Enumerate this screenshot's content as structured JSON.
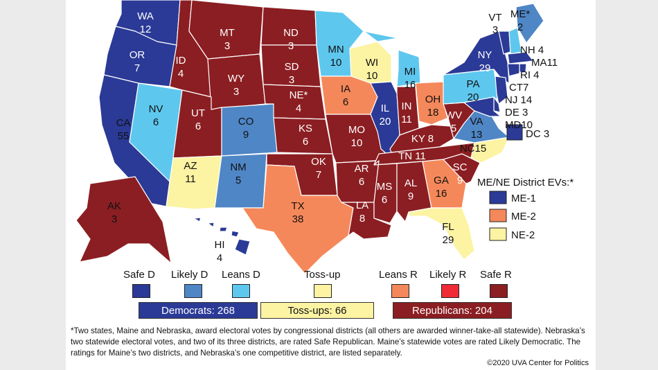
{
  "colors": {
    "safe_d": "#2b3a96",
    "likely_d": "#4f86c6",
    "leans_d": "#5ec7ee",
    "tossup": "#fcf3a3",
    "leans_r": "#f5885a",
    "likely_r": "#ef2b36",
    "safe_r": "#8b1e22"
  },
  "states": [
    {
      "abbr": "WA",
      "ev": "12",
      "rating": "safe_d"
    },
    {
      "abbr": "OR",
      "ev": "7",
      "rating": "safe_d"
    },
    {
      "abbr": "CA",
      "ev": "55",
      "rating": "safe_d"
    },
    {
      "abbr": "NV",
      "ev": "6",
      "rating": "leans_d"
    },
    {
      "abbr": "ID",
      "ev": "4",
      "rating": "safe_r"
    },
    {
      "abbr": "MT",
      "ev": "3",
      "rating": "safe_r"
    },
    {
      "abbr": "WY",
      "ev": "3",
      "rating": "safe_r"
    },
    {
      "abbr": "UT",
      "ev": "6",
      "rating": "safe_r"
    },
    {
      "abbr": "AZ",
      "ev": "11",
      "rating": "tossup"
    },
    {
      "abbr": "CO",
      "ev": "9",
      "rating": "likely_d"
    },
    {
      "abbr": "NM",
      "ev": "5",
      "rating": "likely_d"
    },
    {
      "abbr": "ND",
      "ev": "3",
      "rating": "safe_r"
    },
    {
      "abbr": "SD",
      "ev": "3",
      "rating": "safe_r"
    },
    {
      "abbr": "NE*",
      "ev": "4",
      "rating": "safe_r"
    },
    {
      "abbr": "KS",
      "ev": "6",
      "rating": "safe_r"
    },
    {
      "abbr": "OK",
      "ev": "7",
      "rating": "safe_r"
    },
    {
      "abbr": "TX",
      "ev": "38",
      "rating": "leans_r"
    },
    {
      "abbr": "MN",
      "ev": "10",
      "rating": "leans_d"
    },
    {
      "abbr": "IA",
      "ev": "6",
      "rating": "leans_r"
    },
    {
      "abbr": "MO",
      "ev": "10",
      "rating": "safe_r"
    },
    {
      "abbr": "AR",
      "ev": "6",
      "rating": "safe_r"
    },
    {
      "abbr": "LA",
      "ev": "8",
      "rating": "safe_r"
    },
    {
      "abbr": "WI",
      "ev": "10",
      "rating": "tossup"
    },
    {
      "abbr": "IL",
      "ev": "20",
      "rating": "safe_d"
    },
    {
      "abbr": "MI",
      "ev": "16",
      "rating": "leans_d"
    },
    {
      "abbr": "IN",
      "ev": "11",
      "rating": "safe_r"
    },
    {
      "abbr": "OH",
      "ev": "18",
      "rating": "leans_r"
    },
    {
      "abbr": "KY",
      "ev": "8",
      "rating": "safe_r"
    },
    {
      "abbr": "TN",
      "ev": "11",
      "rating": "safe_r"
    },
    {
      "abbr": "MS",
      "ev": "6",
      "rating": "safe_r"
    },
    {
      "abbr": "AL",
      "ev": "9",
      "rating": "safe_r"
    },
    {
      "abbr": "GA",
      "ev": "16",
      "rating": "leans_r"
    },
    {
      "abbr": "FL",
      "ev": "29",
      "rating": "tossup"
    },
    {
      "abbr": "SC",
      "ev": "9",
      "rating": "safe_r"
    },
    {
      "abbr": "NC",
      "ev": "15",
      "rating": "tossup"
    },
    {
      "abbr": "VA",
      "ev": "13",
      "rating": "likely_d"
    },
    {
      "abbr": "WV",
      "ev": "5",
      "rating": "safe_r"
    },
    {
      "abbr": "PA",
      "ev": "20",
      "rating": "leans_d"
    },
    {
      "abbr": "NY",
      "ev": "29",
      "rating": "safe_d"
    },
    {
      "abbr": "VT",
      "ev": "3",
      "rating": "safe_d"
    },
    {
      "abbr": "NH",
      "ev": "4",
      "rating": "leans_d"
    },
    {
      "abbr": "ME*",
      "ev": "2",
      "rating": "likely_d"
    },
    {
      "abbr": "MA",
      "ev": "11",
      "rating": "safe_d"
    },
    {
      "abbr": "RI",
      "ev": "4",
      "rating": "safe_d"
    },
    {
      "abbr": "CT",
      "ev": "7",
      "rating": "safe_d"
    },
    {
      "abbr": "NJ",
      "ev": "14",
      "rating": "safe_d"
    },
    {
      "abbr": "DE",
      "ev": "3",
      "rating": "safe_d"
    },
    {
      "abbr": "MD",
      "ev": "10",
      "rating": "safe_d"
    },
    {
      "abbr": "DC",
      "ev": "3",
      "rating": "safe_d"
    },
    {
      "abbr": "AK",
      "ev": "3",
      "rating": "safe_r"
    },
    {
      "abbr": "HI",
      "ev": "4",
      "rating": "safe_d"
    }
  ],
  "labels": {
    "WA": "WA",
    "WA_ev": "12",
    "OR": "OR",
    "OR_ev": "7",
    "CA": "CA",
    "CA_ev": "55",
    "NV": "NV",
    "NV_ev": "6",
    "ID": "ID",
    "ID_ev": "4",
    "MT": "MT",
    "MT_ev": "3",
    "WY": "WY",
    "WY_ev": "3",
    "UT": "UT",
    "UT_ev": "6",
    "AZ": "AZ",
    "AZ_ev": "11",
    "CO": "CO",
    "CO_ev": "9",
    "NM": "NM",
    "NM_ev": "5",
    "ND": "ND",
    "ND_ev": "3",
    "SD": "SD",
    "SD_ev": "3",
    "NE": "NE*",
    "NE_ev": "4",
    "KS": "KS",
    "KS_ev": "6",
    "OK": "OK",
    "OK_ev": "7",
    "TX": "TX",
    "TX_ev": "38",
    "MN": "MN",
    "MN_ev": "10",
    "IA": "IA",
    "IA_ev": "6",
    "MO": "MO",
    "MO_ev": "10",
    "AR": "AR",
    "AR_ev": "6",
    "LA": "LA",
    "LA_ev": "8",
    "WI": "WI",
    "WI_ev": "10",
    "IL": "IL",
    "IL_ev": "20",
    "MI": "MI",
    "MI_ev": "16",
    "IN": "IN",
    "IN_ev": "11",
    "OH": "OH",
    "OH_ev": "18",
    "KY": "KY 8",
    "TN": "TN 11",
    "MS": "MS",
    "MS_ev": "6",
    "AL": "AL",
    "AL_ev": "9",
    "GA": "GA",
    "GA_ev": "16",
    "FL": "FL",
    "FL_ev": "29",
    "SC": "SC",
    "SC_ev": "9",
    "NC": "NC15",
    "VA": "VA",
    "VA_ev": "13",
    "WV": "WV",
    "WV_ev": "5",
    "PA": "PA",
    "PA_ev": "20",
    "NY": "NY",
    "NY_ev": "29",
    "VT": "VT",
    "VT_ev": "3",
    "ME": "ME*",
    "ME_ev": "2",
    "AK": "AK",
    "AK_ev": "3",
    "HI": "HI",
    "HI_ev": "4",
    "NH_side": "NH 4",
    "MA_side": "MA11",
    "RI_side": "RI 4",
    "CT_side": "CT7",
    "NJ_side": "NJ 14",
    "DE_side": "DE 3",
    "MD_side": "MD10",
    "DC_side": "DC 3"
  },
  "district_legend": {
    "title": "ME/NE District EVs:*",
    "items": [
      {
        "label": "ME-1",
        "rating": "safe_d"
      },
      {
        "label": "ME-2",
        "rating": "leans_r"
      },
      {
        "label": "NE-2",
        "rating": "tossup"
      }
    ]
  },
  "legend": {
    "categories": [
      {
        "label": "Safe D",
        "rating": "safe_d"
      },
      {
        "label": "Likely D",
        "rating": "likely_d"
      },
      {
        "label": "Leans D",
        "rating": "leans_d"
      },
      {
        "label": "Toss-up",
        "rating": "tossup"
      },
      {
        "label": "Leans R",
        "rating": "leans_r"
      },
      {
        "label": "Likely R",
        "rating": "likely_r"
      },
      {
        "label": "Safe R",
        "rating": "safe_r"
      }
    ]
  },
  "totals": {
    "dem": "Democrats: 268",
    "toss": "Toss-ups: 66",
    "rep": "Republicans: 204"
  },
  "footnote": "*Two states, Maine and Nebraska, award electoral votes by congressional districts (all others are awarded winner-take-all statewide). Nebraska’s two statewide electoral votes, and two of its three districts, are rated Safe Republican. Maine’s statewide votes are rated Likely Democratic. The ratings for Maine’s two districts, and Nebraska’s one competitive district, are listed separately.",
  "copyright": "©2020 UVA Center for Politics"
}
